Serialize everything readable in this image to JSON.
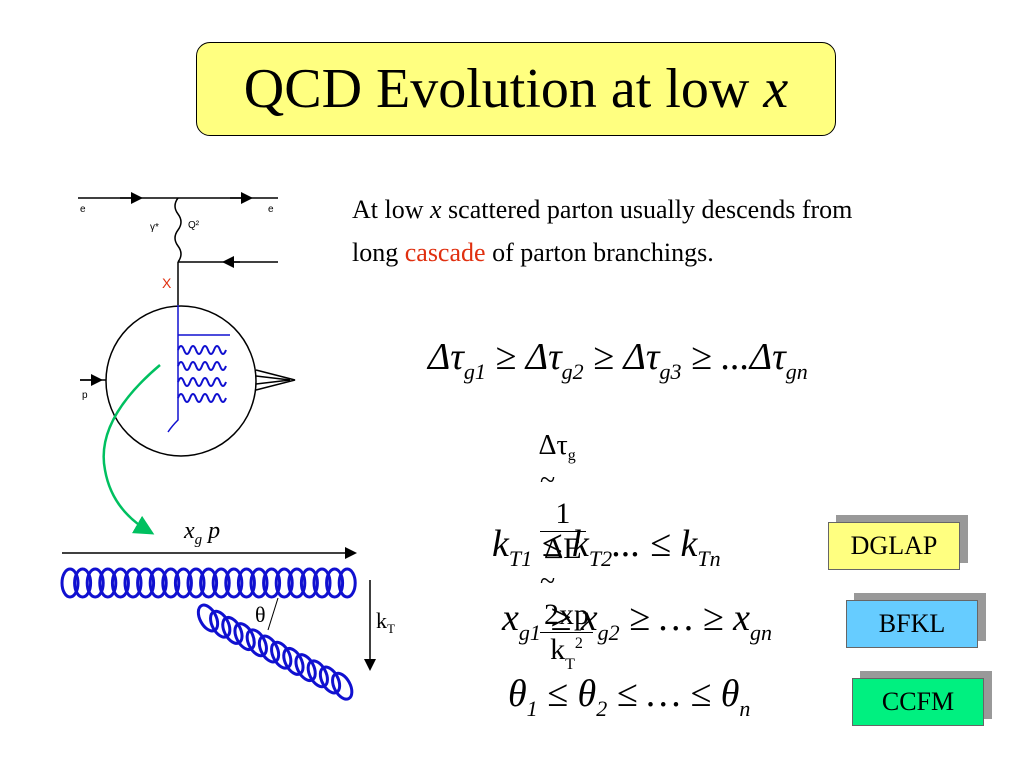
{
  "title": [
    "QCD Evolution at low ",
    "x"
  ],
  "text": [
    "At low ",
    "x",
    " scattered parton usually descends from long ",
    "cascade",
    " of parton branchings."
  ],
  "equations": {
    "ordering_tau": [
      "Δτ",
      "g1",
      " ≥ Δτ",
      "g2",
      " ≥ Δτ",
      "g3",
      " ≥ ...Δτ",
      "gn"
    ],
    "lifetime": {
      "lhs": "Δτ",
      "lhs_sub": "g",
      "sim1": "~",
      "num1": "1",
      "den1": "ΔE",
      "sim2": "~",
      "num2": "2xp",
      "den2": "k",
      "den2_sub": "T",
      "den2_sup": "2"
    },
    "ordering_kt": [
      "k",
      "T1",
      " ≤ k",
      "T2",
      "... ≤ k",
      "Tn"
    ],
    "ordering_x": [
      "x",
      "g1",
      " ≥ x",
      "g2",
      " ≥ … ≥ x",
      "gn"
    ],
    "ordering_theta": [
      "θ",
      "1",
      " ≤ θ",
      "2",
      " ≤ … ≤ θ",
      "n"
    ]
  },
  "schemes": [
    "DGLAP",
    "BFKL",
    "CCFM"
  ],
  "diagram": {
    "electron_in": "e",
    "electron_out": "e",
    "photon": "γ*",
    "virtuality": "Q²",
    "x_mark": "X",
    "proton": "p",
    "momentum": "x",
    "momentum_sub": "g",
    "momentum_p": " p",
    "angle": "θ",
    "kt": "k",
    "kt_sub": "T"
  }
}
